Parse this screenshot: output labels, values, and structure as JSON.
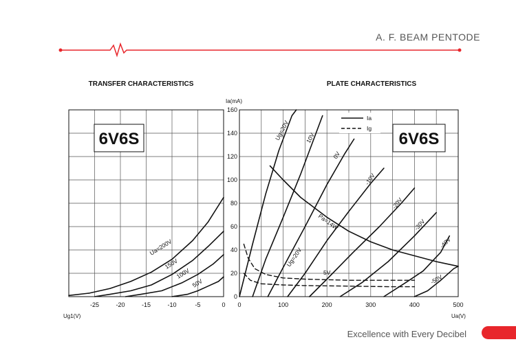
{
  "header": {
    "title": "A. F. BEAM PENTODE"
  },
  "footer": {
    "slogan": "Excellence with Every Decibel"
  },
  "colors": {
    "accent": "#e8262b",
    "ink": "#111111",
    "text": "#555555"
  },
  "chart_data": [
    {
      "type": "line",
      "title": "TRANSFER CHARACTERISTICS",
      "tube_label": "6V6S",
      "xlabel": "Ug1(V)",
      "ylabel": "",
      "xlim": [
        -30,
        0
      ],
      "ylim": [
        0,
        160
      ],
      "x_ticks": [
        -25,
        -20,
        -15,
        -10,
        -5,
        0
      ],
      "grid": true,
      "series": [
        {
          "name": "Ua=200V",
          "x": [
            -30,
            -26,
            -22,
            -18,
            -14,
            -10,
            -6,
            -3,
            0
          ],
          "y": [
            1,
            3,
            7,
            13,
            21,
            32,
            48,
            64,
            85
          ]
        },
        {
          "name": "150V",
          "x": [
            -25,
            -22,
            -18,
            -14,
            -10,
            -6,
            -3,
            0
          ],
          "y": [
            0,
            2,
            5,
            10,
            19,
            31,
            43,
            56
          ]
        },
        {
          "name": "100V",
          "x": [
            -19,
            -16,
            -12,
            -8,
            -5,
            -2,
            0
          ],
          "y": [
            0,
            2,
            5,
            12,
            19,
            28,
            36
          ]
        },
        {
          "name": "50V",
          "x": [
            -10,
            -7,
            -5,
            -3,
            -1,
            0
          ],
          "y": [
            0,
            2,
            5,
            9,
            13,
            17
          ]
        }
      ]
    },
    {
      "type": "line",
      "title": "PLATE CHARACTERISTICS",
      "tube_label": "6V6S",
      "xlabel": "Ua(V)",
      "ylabel": "Ia(mA)",
      "xlim": [
        0,
        500
      ],
      "ylim": [
        0,
        160
      ],
      "x_ticks": [
        0,
        100,
        200,
        300,
        400,
        500
      ],
      "y_ticks": [
        0,
        20,
        40,
        60,
        80,
        100,
        120,
        140,
        160
      ],
      "grid": true,
      "legend": [
        {
          "name": "Ia",
          "style": "solid"
        },
        {
          "name": "Ig",
          "style": "dashed"
        }
      ],
      "series": [
        {
          "name": "Ug=20V",
          "kind": "Ia",
          "x": [
            0,
            30,
            60,
            90,
            120,
            130
          ],
          "y": [
            0,
            45,
            88,
            125,
            155,
            160
          ]
        },
        {
          "name": "10V",
          "kind": "Ia",
          "x": [
            30,
            60,
            100,
            140,
            170,
            190
          ],
          "y": [
            0,
            32,
            68,
            105,
            135,
            155
          ]
        },
        {
          "name": "0V",
          "kind": "Ia",
          "x": [
            65,
            100,
            150,
            200,
            240,
            262
          ],
          "y": [
            0,
            25,
            60,
            96,
            122,
            135
          ]
        },
        {
          "name": "-10V",
          "kind": "Ia",
          "x": [
            110,
            150,
            200,
            250,
            300,
            330
          ],
          "y": [
            0,
            20,
            48,
            73,
            97,
            110
          ]
        },
        {
          "name": "-20V",
          "kind": "Ia",
          "x": [
            160,
            200,
            260,
            320,
            370,
            400
          ],
          "y": [
            0,
            15,
            38,
            60,
            80,
            93
          ]
        },
        {
          "name": "-30V",
          "kind": "Ia",
          "x": [
            230,
            280,
            340,
            400,
            440,
            450
          ],
          "y": [
            0,
            12,
            30,
            52,
            68,
            72
          ]
        },
        {
          "name": "-40V",
          "kind": "Ia",
          "x": [
            330,
            380,
            420,
            460,
            480
          ],
          "y": [
            0,
            12,
            22,
            38,
            52
          ]
        },
        {
          "name": "-50V",
          "kind": "Ia",
          "x": [
            400,
            430,
            460,
            490,
            500
          ],
          "y": [
            0,
            5,
            14,
            24,
            26
          ]
        },
        {
          "name": "Pa=14W",
          "kind": "Ia",
          "x": [
            70,
            100,
            140,
            200,
            250,
            300,
            350,
            400,
            450,
            500
          ],
          "y": [
            112,
            100,
            85,
            68,
            56,
            47,
            40,
            35,
            30,
            26
          ]
        },
        {
          "name": "Ug=20V",
          "kind": "Ig",
          "x": [
            10,
            20,
            35,
            60,
            100,
            150,
            250,
            350,
            400
          ],
          "y": [
            45,
            33,
            24,
            19,
            16,
            15,
            14,
            14,
            14
          ]
        },
        {
          "name": "5V",
          "kind": "Ig",
          "x": [
            10,
            25,
            50,
            100,
            150,
            250,
            350,
            400
          ],
          "y": [
            20,
            14,
            11,
            10,
            9.5,
            9,
            8.5,
            8.5
          ]
        }
      ],
      "labels": [
        "Ug=20V",
        "10V",
        "0V",
        "-10V",
        "-20V",
        "-30V",
        "-40V",
        "-50V",
        "Pa=14W",
        "Ug=20V",
        "5V"
      ]
    }
  ]
}
